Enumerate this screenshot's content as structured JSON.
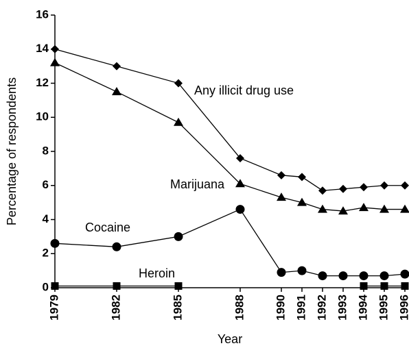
{
  "chart_data": {
    "type": "line",
    "x_label": "Year",
    "y_label": "Percentage of respondents",
    "x": [
      1979,
      1982,
      1985,
      1988,
      1990,
      1991,
      1992,
      1993,
      1994,
      1995,
      1996
    ],
    "xlim": [
      1979,
      1996
    ],
    "xticks": [
      1979,
      1982,
      1985,
      1988,
      1990,
      1991,
      1992,
      1993,
      1994,
      1995,
      1996
    ],
    "ylim": [
      0,
      16
    ],
    "yticks": [
      0,
      2,
      4,
      6,
      8,
      10,
      12,
      14,
      16
    ],
    "grid": false,
    "series": [
      {
        "name": "Any illicit drug use",
        "color": "#000000",
        "marker": "diamond",
        "values": [
          14.0,
          13.0,
          12.0,
          7.6,
          6.6,
          6.5,
          5.7,
          5.8,
          5.9,
          6.0,
          6.0
        ]
      },
      {
        "name": "Marijuana",
        "color": "#000000",
        "marker": "triangle",
        "values": [
          13.2,
          11.5,
          9.7,
          6.1,
          5.3,
          5.0,
          4.6,
          4.5,
          4.7,
          4.6,
          4.6
        ]
      },
      {
        "name": "Cocaine",
        "color": "#000000",
        "marker": "circle",
        "values": [
          2.6,
          2.4,
          3.0,
          4.6,
          0.9,
          1.0,
          0.7,
          0.7,
          0.7,
          0.7,
          0.8
        ]
      },
      {
        "name": "Heroin",
        "color": "#000000",
        "marker": "square",
        "values": [
          0.1,
          0.1,
          0.1,
          null,
          null,
          null,
          null,
          null,
          0.1,
          0.1,
          0.1
        ]
      }
    ]
  }
}
